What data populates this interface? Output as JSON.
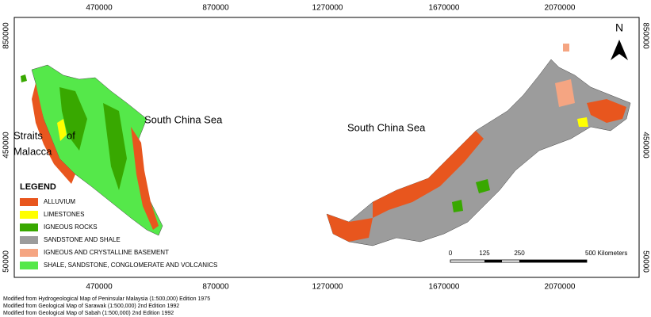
{
  "grid_labels": {
    "top": [
      "470000",
      "870000",
      "1270000",
      "1670000",
      "2070000"
    ],
    "bottom": [
      "470000",
      "870000",
      "1270000",
      "1670000",
      "2070000"
    ],
    "left": [
      "850000",
      "450000",
      "50000"
    ],
    "right": [
      "850000",
      "450000",
      "50000"
    ]
  },
  "labels": {
    "sea_west": "South China Sea",
    "sea_east": "South China Sea",
    "straits": "Straits",
    "of": "of",
    "malacca": "Malacca"
  },
  "north": "N",
  "legend": {
    "title": "LEGEND",
    "items": [
      {
        "label": "ALLUVIUM",
        "color": "#e8561e"
      },
      {
        "label": "LIMESTONES",
        "color": "#ffff00"
      },
      {
        "label": "IGNEOUS ROCKS",
        "color": "#38a800"
      },
      {
        "label": "SANDSTONE AND SHALE",
        "color": "#9c9c9c"
      },
      {
        "label": "IGNEOUS AND CRYSTALLINE BASEMENT",
        "color": "#f5a582"
      },
      {
        "label": "SHALE, SANDSTONE, CONGLOMERATE AND VOLCANICS",
        "color": "#55e84a"
      }
    ]
  },
  "scale_bar": [
    "0",
    "125",
    "250",
    "500 Kilometers"
  ],
  "credits": [
    "Modified from Hydrogeological Map of Peninsular Malaysia (1:500,000) Edition 1975",
    "Modified from Geological Map of Sarawak (1:500,000) 2nd Edition 1992",
    "Modified from Geological Map of Sabah (1:500,000) 2nd Edition 1992"
  ]
}
